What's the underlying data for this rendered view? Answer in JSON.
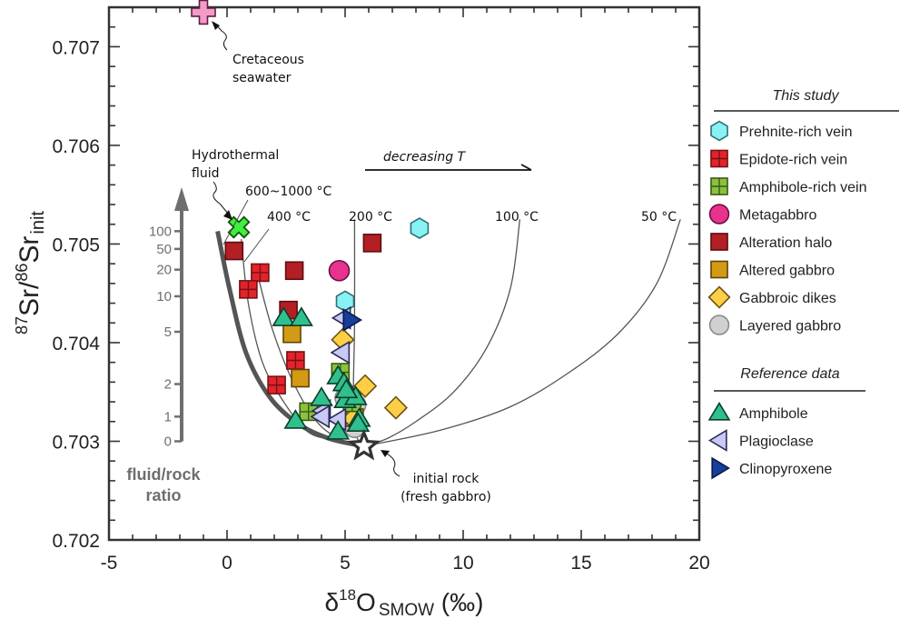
{
  "chart_data": {
    "type": "scatter",
    "title": "",
    "xlabel": {
      "main": "δ",
      "sup": "18",
      "base": "O",
      "sub": "SMOW",
      "unit": " (‰)"
    },
    "ylabel": {
      "sup1": "87",
      "mid": "Sr/",
      "sup2": "86",
      "base": "Sr",
      "sub": "init"
    },
    "xlim": [
      -5,
      20
    ],
    "ylim": [
      0.702,
      0.7074
    ],
    "xticks": [
      -5,
      0,
      5,
      10,
      15,
      20
    ],
    "xtick_labels": [
      "-5",
      "0",
      "5",
      "10",
      "15",
      "20"
    ],
    "xminor_step": 1,
    "yticks": [
      0.702,
      0.703,
      0.704,
      0.705,
      0.706,
      0.707
    ],
    "ytick_labels": [
      "0.702",
      "0.703",
      "0.704",
      "0.705",
      "0.706",
      "0.707"
    ],
    "yminor_step": 0.0002,
    "grid": false,
    "legend_position": "right-outside",
    "legend_groups": [
      {
        "heading": "This study",
        "entries": [
          {
            "name": "Prehnite-rich vein",
            "marker": "hexagon",
            "fill": "#88f2f2",
            "stroke": "#2c6f78"
          },
          {
            "name": "Epidote-rich vein",
            "marker": "square-cross",
            "fill": "#e0242c",
            "stroke": "#7a0f12"
          },
          {
            "name": "Amphibole-rich vein",
            "marker": "square-cross",
            "fill": "#8bc13f",
            "stroke": "#3a5a12"
          },
          {
            "name": "Metagabbro",
            "marker": "circle",
            "fill": "#e8328e",
            "stroke": "#6b1040"
          },
          {
            "name": "Alteration halo",
            "marker": "square",
            "fill": "#b21f24",
            "stroke": "#5e0d10"
          },
          {
            "name": "Altered gabbro",
            "marker": "square",
            "fill": "#d39a14",
            "stroke": "#5e4306"
          },
          {
            "name": "Gabbroic dikes",
            "marker": "diamond",
            "fill": "#fdcf47",
            "stroke": "#6b5310"
          },
          {
            "name": "Layered gabbro",
            "marker": "circle",
            "fill": "#d0d0d0",
            "stroke": "#8a8a8a"
          }
        ]
      },
      {
        "heading": "Reference data",
        "entries": [
          {
            "name": "Amphibole",
            "marker": "triangle-up",
            "fill": "#30c08e",
            "stroke": "#0d3d2a"
          },
          {
            "name": "Plagioclase",
            "marker": "triangle-left",
            "fill": "#c9c9f5",
            "stroke": "#2b2b55"
          },
          {
            "name": "Clinopyroxene",
            "marker": "triangle-right",
            "fill": "#173e9a",
            "stroke": "#0a1a44"
          }
        ]
      }
    ],
    "series": [
      {
        "name": "Prehnite-rich vein",
        "points": [
          [
            8.15,
            0.70516
          ],
          [
            5.0,
            0.70442
          ]
        ]
      },
      {
        "name": "Epidote-rich vein",
        "points": [
          [
            1.4,
            0.70471
          ],
          [
            0.9,
            0.70454
          ],
          [
            2.9,
            0.70382
          ],
          [
            2.1,
            0.70357
          ]
        ]
      },
      {
        "name": "Amphibole-rich vein",
        "points": [
          [
            4.8,
            0.7037
          ],
          [
            3.45,
            0.7033
          ],
          [
            5.3,
            0.70339
          ]
        ]
      },
      {
        "name": "Metagabbro",
        "points": [
          [
            4.75,
            0.70473
          ]
        ]
      },
      {
        "name": "Alteration halo",
        "points": [
          [
            0.3,
            0.70493
          ],
          [
            2.85,
            0.70473
          ],
          [
            6.15,
            0.70501
          ],
          [
            2.6,
            0.70433
          ]
        ]
      },
      {
        "name": "Altered gabbro",
        "points": [
          [
            2.75,
            0.70409
          ],
          [
            3.1,
            0.70364
          ],
          [
            5.4,
            0.70324
          ]
        ]
      },
      {
        "name": "Gabbroic dikes",
        "points": [
          [
            4.9,
            0.70403
          ],
          [
            5.85,
            0.70356
          ],
          [
            7.15,
            0.70334
          ],
          [
            5.35,
            0.70323
          ]
        ]
      },
      {
        "name": "Layered gabbro",
        "points": [
          [
            5.0,
            0.70344
          ],
          [
            5.45,
            0.70337
          ],
          [
            5.4,
            0.70314
          ]
        ]
      },
      {
        "name": "Amphibole",
        "points": [
          [
            2.4,
            0.70425
          ],
          [
            3.15,
            0.70425
          ],
          [
            4.0,
            0.70344
          ],
          [
            2.9,
            0.70321
          ],
          [
            4.7,
            0.70366
          ],
          [
            4.95,
            0.70359
          ],
          [
            5.0,
            0.70342
          ],
          [
            5.45,
            0.70345
          ],
          [
            5.6,
            0.70323
          ],
          [
            4.7,
            0.7031
          ],
          [
            5.55,
            0.70318
          ],
          [
            5.05,
            0.70352
          ]
        ]
      },
      {
        "name": "Plagioclase",
        "points": [
          [
            4.9,
            0.70425
          ],
          [
            4.85,
            0.7039
          ],
          [
            4.05,
            0.70331
          ],
          [
            4.7,
            0.70322
          ],
          [
            4.0,
            0.70325
          ]
        ]
      },
      {
        "name": "Clinopyroxene",
        "points": [
          [
            5.25,
            0.70423
          ]
        ]
      }
    ],
    "special_points": [
      {
        "name": "Cretaceous seawater",
        "marker": "plus",
        "fill": "#f49ac8",
        "stroke": "#5a2140",
        "x": -1.0,
        "y": 0.70735
      },
      {
        "name": "Hydrothermal fluid",
        "marker": "x",
        "fill": "#3cf03c",
        "stroke": "#145214",
        "x": 0.5,
        "y": 0.70517
      },
      {
        "name": "Initial rock (fresh gabbro)",
        "marker": "star",
        "fill": "#ffffff",
        "stroke": "#333333",
        "x": 5.8,
        "y": 0.70295
      }
    ],
    "mixing_curves": [
      {
        "label": "600~1000 °C",
        "points": [
          [
            0.6,
            0.70505
          ],
          [
            0.9,
            0.7044
          ],
          [
            1.5,
            0.7038
          ],
          [
            2.4,
            0.7034
          ],
          [
            3.4,
            0.7031
          ],
          [
            4.5,
            0.70301
          ],
          [
            5.8,
            0.70295
          ]
        ]
      },
      {
        "label": "400 °C",
        "points": [
          [
            1.2,
            0.70478
          ],
          [
            1.9,
            0.70415
          ],
          [
            2.8,
            0.7036
          ],
          [
            3.8,
            0.7032
          ],
          [
            4.8,
            0.70302
          ],
          [
            5.8,
            0.70295
          ]
        ]
      },
      {
        "label": "200 °C",
        "points": [
          [
            5.4,
            0.70525
          ],
          [
            5.4,
            0.7042
          ],
          [
            5.35,
            0.7035
          ],
          [
            5.4,
            0.7031
          ],
          [
            5.8,
            0.70295
          ]
        ]
      },
      {
        "label": "100 °C",
        "points": [
          [
            12.4,
            0.70525
          ],
          [
            12.0,
            0.70455
          ],
          [
            11.0,
            0.70395
          ],
          [
            9.6,
            0.7035
          ],
          [
            8.0,
            0.7032
          ],
          [
            6.8,
            0.70303
          ],
          [
            5.8,
            0.70295
          ]
        ]
      },
      {
        "label": "50 °C",
        "points": [
          [
            19.2,
            0.70525
          ],
          [
            18.2,
            0.7046
          ],
          [
            16.6,
            0.7041
          ],
          [
            14.5,
            0.7037
          ],
          [
            12.0,
            0.70335
          ],
          [
            9.0,
            0.70311
          ],
          [
            5.8,
            0.70295
          ]
        ]
      }
    ],
    "model_curve": {
      "name": "fluid-rock interaction trend",
      "points": [
        [
          -0.4,
          0.70513
        ],
        [
          0.1,
          0.70455
        ],
        [
          0.8,
          0.7039
        ],
        [
          1.8,
          0.70345
        ],
        [
          3.0,
          0.70318
        ],
        [
          4.3,
          0.70303
        ],
        [
          5.8,
          0.70295
        ]
      ]
    },
    "annotations": {
      "seawater": [
        "Cretaceous",
        "seawater"
      ],
      "fluid": [
        "Hydrothermal",
        "fluid"
      ],
      "temps": [
        "600~1000 °C",
        "400 °C",
        "200 °C",
        "100 °C",
        "50 °C"
      ],
      "decreasing": "decreasing T",
      "initial_rock": [
        "initial rock",
        "(fresh gabbro)"
      ]
    },
    "fluid_rock_axis": {
      "title": [
        "fluid/rock",
        "ratio"
      ],
      "ticks": [
        "100",
        "50",
        "20",
        "10",
        "5",
        "2",
        "1",
        "0"
      ],
      "tick_y_values": [
        0.70513,
        0.70495,
        0.70474,
        0.70447,
        0.70411,
        0.70358,
        0.70325,
        0.703
      ]
    }
  }
}
